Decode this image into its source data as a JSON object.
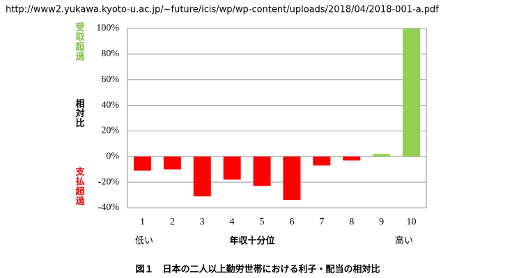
{
  "url": "http://www2.yukawa.kyoto-u.ac.jp/~future/icis/wp/wp-content/uploads/2018/04/2018-001-a.pdf",
  "chart_data": {
    "type": "bar",
    "y_label_top": "受取超過",
    "y_label_middle": "相対比",
    "y_label_bottom": "支払超過",
    "x_label_left": "低い",
    "x_label": "年収十分位",
    "x_label_right": "高い",
    "caption": "図１　日本の二人以上勤労世帯における利子・配当の相対比",
    "categories": [
      "1",
      "2",
      "3",
      "4",
      "5",
      "6",
      "7",
      "8",
      "9",
      "10"
    ],
    "values": [
      -11,
      -10,
      -31,
      -18,
      -23,
      -34,
      -7,
      -3,
      2,
      100
    ],
    "colors": [
      "#ff0000",
      "#ff0000",
      "#ff0000",
      "#ff0000",
      "#ff0000",
      "#ff0000",
      "#ff0000",
      "#ff0000",
      "#92d050",
      "#92d050"
    ],
    "ylim": [
      -40,
      100
    ],
    "yticks": [
      {
        "value": -40,
        "label": "-40%"
      },
      {
        "value": -20,
        "label": "-20%"
      },
      {
        "value": 0,
        "label": "0%"
      },
      {
        "value": 20,
        "label": "20%"
      },
      {
        "value": 40,
        "label": "40%"
      },
      {
        "value": 60,
        "label": "60%"
      },
      {
        "value": 80,
        "label": "80%"
      },
      {
        "value": 100,
        "label": "100%"
      }
    ],
    "grid": true
  }
}
